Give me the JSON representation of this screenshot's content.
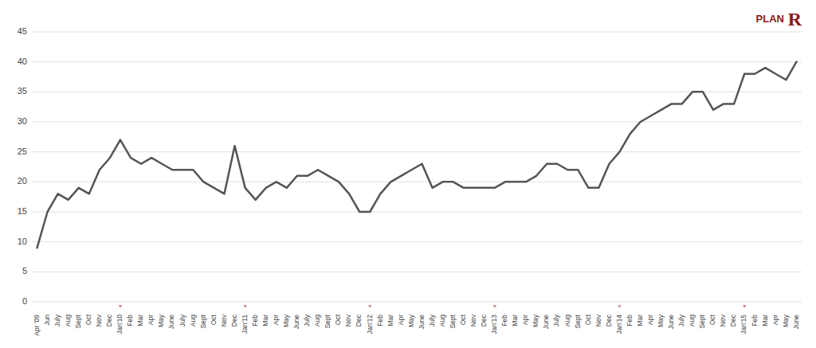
{
  "chart_data": {
    "type": "line",
    "categories": [
      "Apr '09",
      "Jun",
      "July",
      "Aug",
      "Sept",
      "Oct",
      "Nov",
      "Dec",
      "Jan'10",
      "Feb",
      "Mar",
      "Apr",
      "May",
      "June",
      "July",
      "Aug",
      "Sept",
      "Oct",
      "Nov",
      "Dec",
      "Jan'11",
      "Feb",
      "Mar",
      "Apr",
      "May",
      "June",
      "July",
      "Aug",
      "Sept",
      "Oct",
      "Nov",
      "Dec",
      "Jan'12",
      "Feb",
      "Mar",
      "Apr",
      "May",
      "June",
      "July",
      "Aug",
      "Sept",
      "Oct",
      "Nov",
      "Dec",
      "Jan'13",
      "Feb",
      "Mar",
      "Apr",
      "May",
      "June",
      "July",
      "Aug",
      "Sept",
      "Oct",
      "Nov",
      "Dec",
      "Jan'14",
      "Feb",
      "Mar",
      "Apr",
      "May",
      "June",
      "July",
      "Aug",
      "Sept",
      "Oct",
      "Nov",
      "Dec",
      "Jan'15",
      "Feb",
      "Mar",
      "Apr",
      "May",
      "June"
    ],
    "values": [
      9,
      15,
      18,
      17,
      19,
      18,
      22,
      24,
      27,
      24,
      23,
      24,
      23,
      22,
      22,
      22,
      20,
      19,
      18,
      26,
      19,
      17,
      19,
      20,
      19,
      21,
      21,
      22,
      21,
      20,
      18,
      15,
      15,
      18,
      20,
      21,
      22,
      23,
      19,
      20,
      20,
      19,
      19,
      19,
      19,
      20,
      20,
      20,
      21,
      23,
      23,
      22,
      22,
      19,
      19,
      23,
      25,
      28,
      30,
      31,
      32,
      33,
      33,
      35,
      35,
      32,
      33,
      33,
      38,
      38,
      39,
      38,
      37,
      40
    ],
    "color": "#555555",
    "ylim": [
      0,
      45
    ],
    "yticks": [
      0,
      5,
      10,
      15,
      20,
      25,
      30,
      35,
      40,
      45
    ],
    "grid": true,
    "annotations": [
      {
        "text": "PLAN",
        "color": "#8B1A1A"
      },
      {
        "text": "R",
        "color": "#8B1A1A"
      },
      {
        "text": "▼",
        "x": "Jan'10",
        "y": 0
      },
      {
        "text": "▼",
        "x": "Jan'11",
        "y": 0
      },
      {
        "text": "▼",
        "x": "Jan'12",
        "y": 0
      },
      {
        "text": "▼",
        "x": "Jan'13",
        "y": 0
      },
      {
        "text": "▼",
        "x": "Jan'14",
        "y": 0
      },
      {
        "text": "▼",
        "x": "Jan'15",
        "y": 0
      }
    ]
  }
}
